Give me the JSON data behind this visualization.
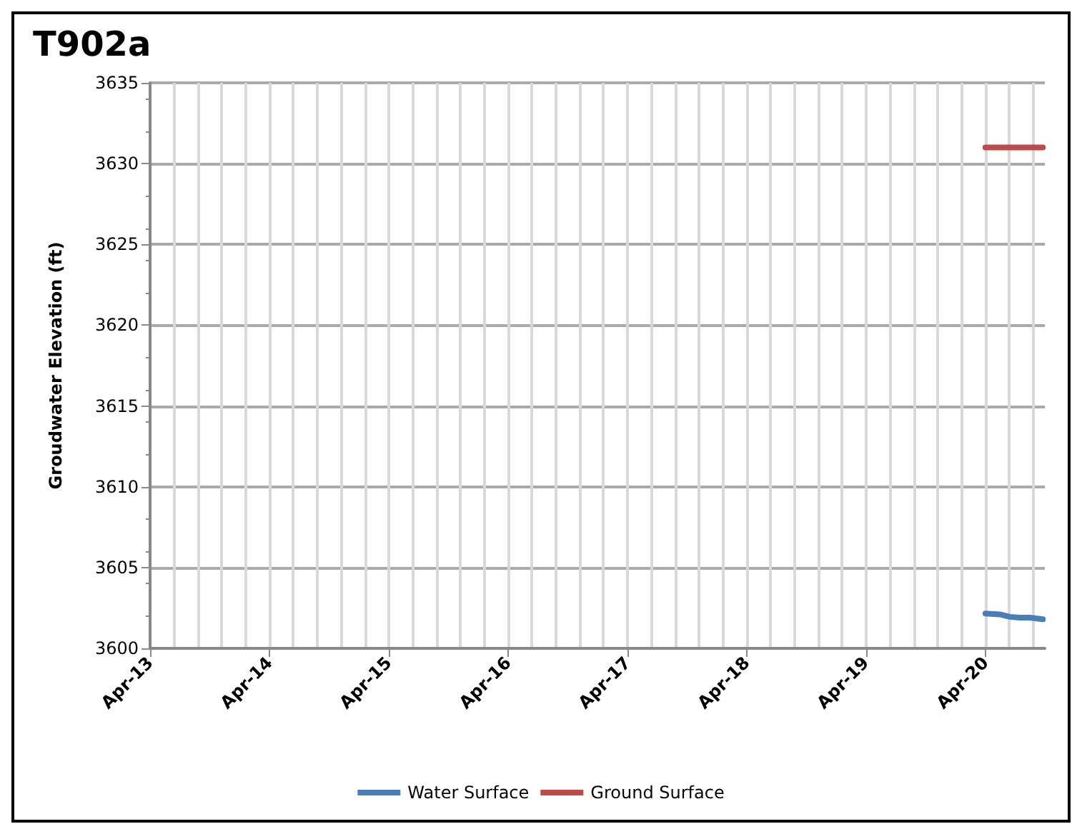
{
  "chart_data": {
    "type": "line",
    "title": "T902a",
    "ylabel": "Groudwater Elevation (ft)",
    "xlim": [
      "2013-04-01",
      "2020-09-30"
    ],
    "xticks": [
      {
        "value": "2013-04-01",
        "label": "Apr-13"
      },
      {
        "value": "2014-04-01",
        "label": "Apr-14"
      },
      {
        "value": "2015-04-01",
        "label": "Apr-15"
      },
      {
        "value": "2016-04-01",
        "label": "Apr-16"
      },
      {
        "value": "2017-04-01",
        "label": "Apr-17"
      },
      {
        "value": "2018-04-01",
        "label": "Apr-18"
      },
      {
        "value": "2019-04-01",
        "label": "Apr-19"
      },
      {
        "value": "2020-04-01",
        "label": "Apr-20"
      }
    ],
    "ylim": [
      3600,
      3635
    ],
    "yticks": [
      3600,
      3605,
      3610,
      3615,
      3620,
      3625,
      3630,
      3635
    ],
    "grid": true,
    "legend": "bottom",
    "marker": "none",
    "line_style": "solid",
    "series": [
      {
        "name": "Water Surface",
        "color": "#4a7ebb",
        "x": [
          "2020-04-01",
          "2020-05-15",
          "2020-06-15",
          "2020-07-15",
          "2020-08-15",
          "2020-09-24"
        ],
        "values": [
          3602.15,
          3602.1,
          3601.95,
          3601.9,
          3601.9,
          3601.8
        ]
      },
      {
        "name": "Ground Surface",
        "color": "#be4b48",
        "x": [
          "2020-04-01",
          "2020-09-24"
        ],
        "values": [
          3631,
          3631
        ]
      }
    ]
  }
}
